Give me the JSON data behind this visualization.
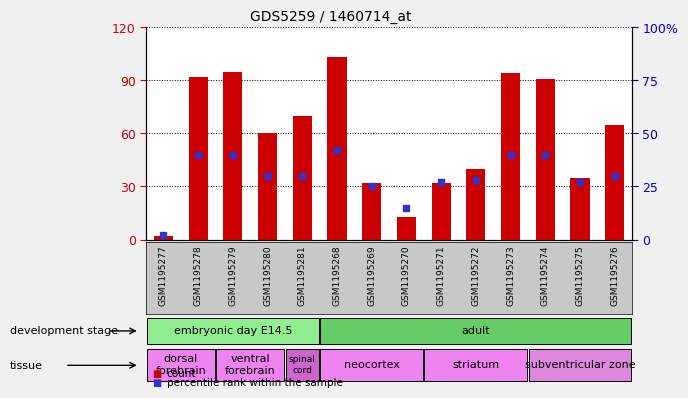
{
  "title": "GDS5259 / 1460714_at",
  "samples": [
    "GSM1195277",
    "GSM1195278",
    "GSM1195279",
    "GSM1195280",
    "GSM1195281",
    "GSM1195268",
    "GSM1195269",
    "GSM1195270",
    "GSM1195271",
    "GSM1195272",
    "GSM1195273",
    "GSM1195274",
    "GSM1195275",
    "GSM1195276"
  ],
  "counts": [
    2,
    92,
    95,
    60,
    70,
    103,
    32,
    13,
    32,
    40,
    94,
    91,
    35,
    65
  ],
  "percentile": [
    2,
    40,
    40,
    30,
    30,
    42,
    25,
    15,
    27,
    28,
    40,
    40,
    27,
    30
  ],
  "ylim_left": [
    0,
    120
  ],
  "ylim_right": [
    0,
    100
  ],
  "yticks_left": [
    0,
    30,
    60,
    90,
    120
  ],
  "yticks_right": [
    0,
    25,
    50,
    75,
    100
  ],
  "bar_color": "#cc0000",
  "square_color": "#3333cc",
  "bg_color": "#f0f0f0",
  "plot_bg": "#ffffff",
  "dev_stage_groups": [
    {
      "label": "embryonic day E14.5",
      "start": 0,
      "end": 5,
      "color": "#90ee90"
    },
    {
      "label": "adult",
      "start": 5,
      "end": 14,
      "color": "#66cc66"
    }
  ],
  "tissue_groups": [
    {
      "label": "dorsal\nforebrain",
      "start": 0,
      "end": 2,
      "color": "#ee82ee"
    },
    {
      "label": "ventral\nforebrain",
      "start": 2,
      "end": 4,
      "color": "#ee82ee"
    },
    {
      "label": "spinal\ncord",
      "start": 4,
      "end": 5,
      "color": "#cc66cc"
    },
    {
      "label": "neocortex",
      "start": 5,
      "end": 8,
      "color": "#ee82ee"
    },
    {
      "label": "striatum",
      "start": 8,
      "end": 11,
      "color": "#ee82ee"
    },
    {
      "label": "subventricular zone",
      "start": 11,
      "end": 14,
      "color": "#dd88dd"
    }
  ],
  "left_label_color": "#cc0000",
  "right_label_color": "#0000cc",
  "dev_stage_label": "development stage",
  "tissue_label": "tissue",
  "bar_width": 0.55,
  "marker_size": 5
}
